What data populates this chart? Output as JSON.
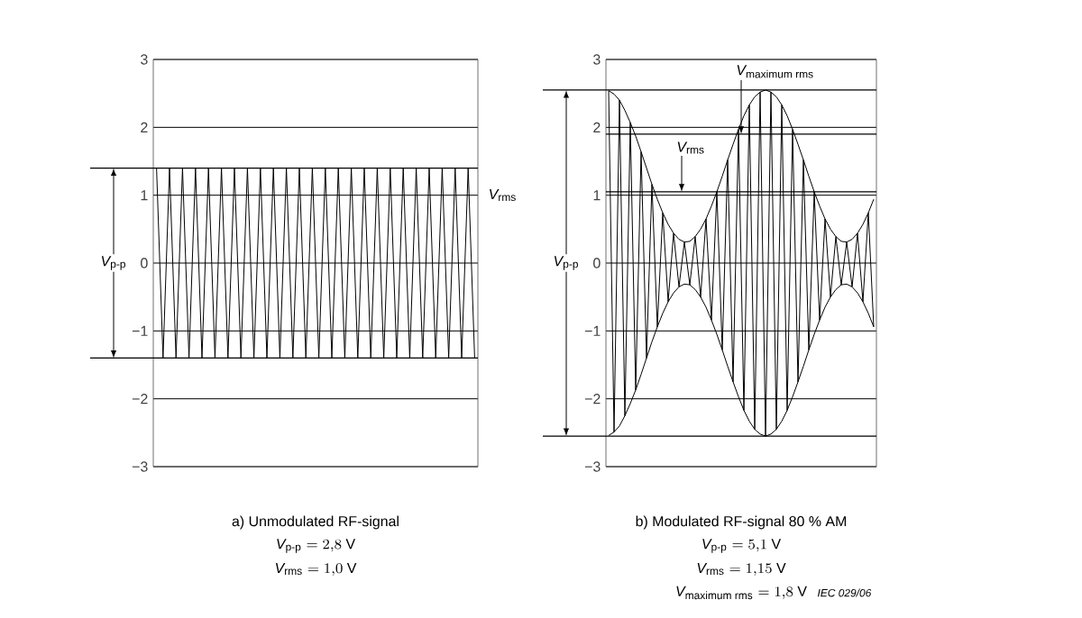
{
  "chart_data": [
    {
      "type": "line",
      "title": "a)    Unmodulated RF-signal",
      "ylim": [
        -3,
        3
      ],
      "yticks": [
        {
          "value": -3,
          "label": "−3"
        },
        {
          "value": -2,
          "label": "−2"
        },
        {
          "value": -1,
          "label": "−1"
        },
        {
          "value": 0,
          "label": "0"
        },
        {
          "value": 1,
          "label": "1"
        },
        {
          "value": 2,
          "label": "2"
        },
        {
          "value": 3,
          "label": "3"
        }
      ],
      "tick_labels": "y",
      "grid": "y",
      "categories": [
        null,
        null,
        null,
        null,
        null,
        null,
        null,
        null,
        null,
        null,
        null,
        null,
        null,
        null,
        null,
        null,
        null,
        null,
        null,
        null,
        null,
        null,
        null,
        null,
        null,
        null,
        null,
        null,
        null,
        null,
        null,
        null,
        null,
        null,
        null,
        null,
        null,
        null,
        null,
        null,
        null,
        null,
        null,
        null,
        null,
        null,
        null,
        null,
        null,
        null
      ],
      "series": [
        {
          "color": "#000000",
          "values": [
            1.4,
            -1.4,
            1.4,
            -1.4,
            1.4,
            -1.4,
            1.4,
            -1.4,
            1.4,
            -1.4,
            1.4,
            -1.4,
            1.4,
            -1.4,
            1.4,
            -1.4,
            1.4,
            -1.4,
            1.4,
            -1.4,
            1.4,
            -1.4,
            1.4,
            -1.4,
            1.4,
            -1.4,
            1.4,
            -1.4,
            1.4,
            -1.4,
            1.4,
            -1.4,
            1.4,
            -1.4,
            1.4,
            -1.4,
            1.4,
            -1.4,
            1.4,
            -1.4,
            1.4,
            -1.4,
            1.4,
            -1.4,
            1.4,
            -1.4,
            1.4,
            -1.4,
            1.4,
            -1.4
          ]
        }
      ],
      "ref_lines": [
        {
          "axis": "y",
          "value": 1.4,
          "label": null,
          "color": "#000000"
        },
        {
          "axis": "y",
          "value": -1.4,
          "label": null,
          "color": "#000000"
        }
      ],
      "annotations": [
        "\\textit{V}_{\\text{p-p}}",
        "\\textit{V}_{\\text{rms}}",
        "\\textit{V}_{\\text{p-p}} = 2{,}8\\ \\text{V}",
        "\\textit{V}_{\\text{rms}} = 1{,}0\\ \\text{V}"
      ]
    },
    {
      "type": "line",
      "title": "b)    Modulated RF-signal 80 % AM",
      "subtitle": "IEC  029/06",
      "ylim": [
        -3,
        3
      ],
      "yticks": [
        {
          "value": -3,
          "label": "−3"
        },
        {
          "value": -2,
          "label": "−2"
        },
        {
          "value": -1,
          "label": "−1"
        },
        {
          "value": 0,
          "label": "0"
        },
        {
          "value": 1,
          "label": "1"
        },
        {
          "value": 2,
          "label": "2"
        },
        {
          "value": 3,
          "label": "3"
        }
      ],
      "tick_labels": "y",
      "grid": "y",
      "categories": [
        null,
        null,
        null,
        null,
        null,
        null,
        null,
        null,
        null,
        null,
        null,
        null,
        null,
        null,
        null,
        null,
        null,
        null,
        null,
        null,
        null,
        null,
        null,
        null,
        null,
        null,
        null,
        null,
        null,
        null,
        null,
        null,
        null,
        null,
        null,
        null,
        null,
        null,
        null,
        null,
        null,
        null,
        null,
        null,
        null,
        null,
        null,
        null,
        null,
        null
      ],
      "series": [
        {
          "color": "#000000",
          "values": [
            2.54,
            -2.49,
            2.4,
            -2.25,
            2.07,
            -1.87,
            1.64,
            -1.4,
            1.16,
            -0.94,
            0.74,
            -0.57,
            0.44,
            -0.35,
            0.31,
            -0.32,
            0.39,
            -0.5,
            0.65,
            -0.84,
            1.05,
            -1.28,
            1.52,
            -1.75,
            1.97,
            -2.17,
            2.33,
            -2.45,
            2.52,
            -2.55,
            2.52,
            -2.45,
            2.33,
            -2.17,
            1.97,
            -1.75,
            1.52,
            -1.28,
            1.05,
            -0.84,
            0.65,
            -0.5,
            0.39,
            -0.32,
            0.31,
            -0.35,
            0.44,
            -0.57,
            0.74,
            -0.94
          ]
        },
        {
          "color": "#000000",
          "values": [
            2.54,
            2.49,
            2.4,
            2.25,
            2.07,
            1.87,
            1.64,
            1.4,
            1.16,
            0.94,
            0.74,
            0.57,
            0.44,
            0.35,
            0.31,
            0.32,
            0.39,
            0.5,
            0.65,
            0.84,
            1.05,
            1.28,
            1.52,
            1.75,
            1.97,
            2.17,
            2.33,
            2.45,
            2.52,
            2.55,
            2.52,
            2.45,
            2.33,
            2.17,
            1.97,
            1.75,
            1.52,
            1.28,
            1.05,
            0.84,
            0.65,
            0.5,
            0.39,
            0.32,
            0.31,
            0.35,
            0.44,
            0.57,
            0.74,
            0.94
          ]
        },
        {
          "color": "#000000",
          "values": [
            -2.54,
            -2.49,
            -2.4,
            -2.25,
            -2.07,
            -1.87,
            -1.64,
            -1.4,
            -1.16,
            -0.94,
            -0.74,
            -0.57,
            -0.44,
            -0.35,
            -0.31,
            -0.32,
            -0.39,
            -0.5,
            -0.65,
            -0.84,
            -1.05,
            -1.28,
            -1.52,
            -1.75,
            -1.97,
            -2.17,
            -2.33,
            -2.45,
            -2.52,
            -2.55,
            -2.52,
            -2.45,
            -2.33,
            -2.17,
            -1.97,
            -1.75,
            -1.52,
            -1.28,
            -1.05,
            -0.84,
            -0.65,
            -0.5,
            -0.39,
            -0.32,
            -0.31,
            -0.35,
            -0.44,
            -0.57,
            -0.74,
            -0.94
          ]
        }
      ],
      "ref_lines": [
        {
          "axis": "y",
          "value": 2.55,
          "label": null,
          "color": "#000000"
        },
        {
          "axis": "y",
          "value": -2.55,
          "label": null,
          "color": "#000000"
        },
        {
          "axis": "y",
          "value": 1.9,
          "label": "\\textit{V}_{\\text{maximum rms}}",
          "color": "#000000"
        },
        {
          "axis": "y",
          "value": 1.05,
          "label": "\\textit{V}_{\\text{rms}}",
          "color": "#000000"
        }
      ],
      "annotations": [
        "\\textit{V}_{\\text{p-p}}",
        "\\textit{V}_{\\text{p-p}} = 5{,}1\\ \\text{V}",
        "\\textit{V}_{\\text{rms}} = 1{,}15\\ \\text{V}",
        "\\textit{V}_{\\text{maximum rms}} = 1{,}8\\ \\text{V}"
      ]
    }
  ]
}
